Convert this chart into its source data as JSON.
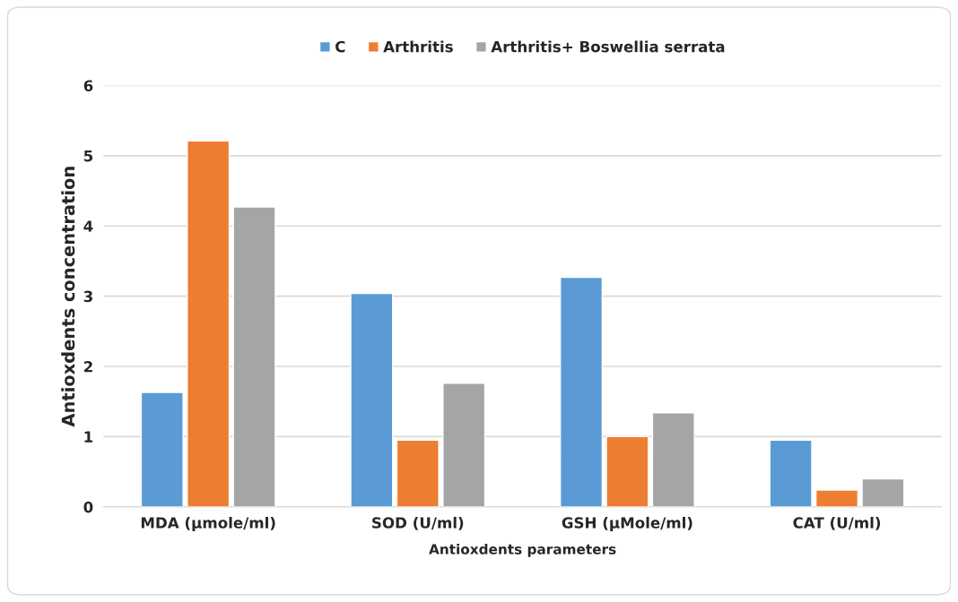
{
  "chart_data": {
    "type": "bar",
    "xlabel": "Antioxdents parameters",
    "ylabel": "Antioxdents concentration",
    "categories": [
      "MDA (µmole/ml)",
      "SOD (U/ml)",
      "GSH (µMole/ml)",
      "CAT (U/ml)"
    ],
    "series": [
      {
        "name": "C",
        "color": "#5b9bd5",
        "values": [
          1.63,
          3.04,
          3.27,
          0.95
        ]
      },
      {
        "name": "Arthritis",
        "color": "#ed7d31",
        "values": [
          5.21,
          0.95,
          1.0,
          0.24
        ]
      },
      {
        "name": "Arthritis+ Boswellia serrata",
        "color": "#a5a5a5",
        "values": [
          4.27,
          1.76,
          1.34,
          0.4
        ]
      }
    ],
    "ylim": [
      0,
      6
    ],
    "yticks": [
      0,
      1,
      2,
      3,
      4,
      5,
      6
    ],
    "grid": "y",
    "legend": "top"
  }
}
